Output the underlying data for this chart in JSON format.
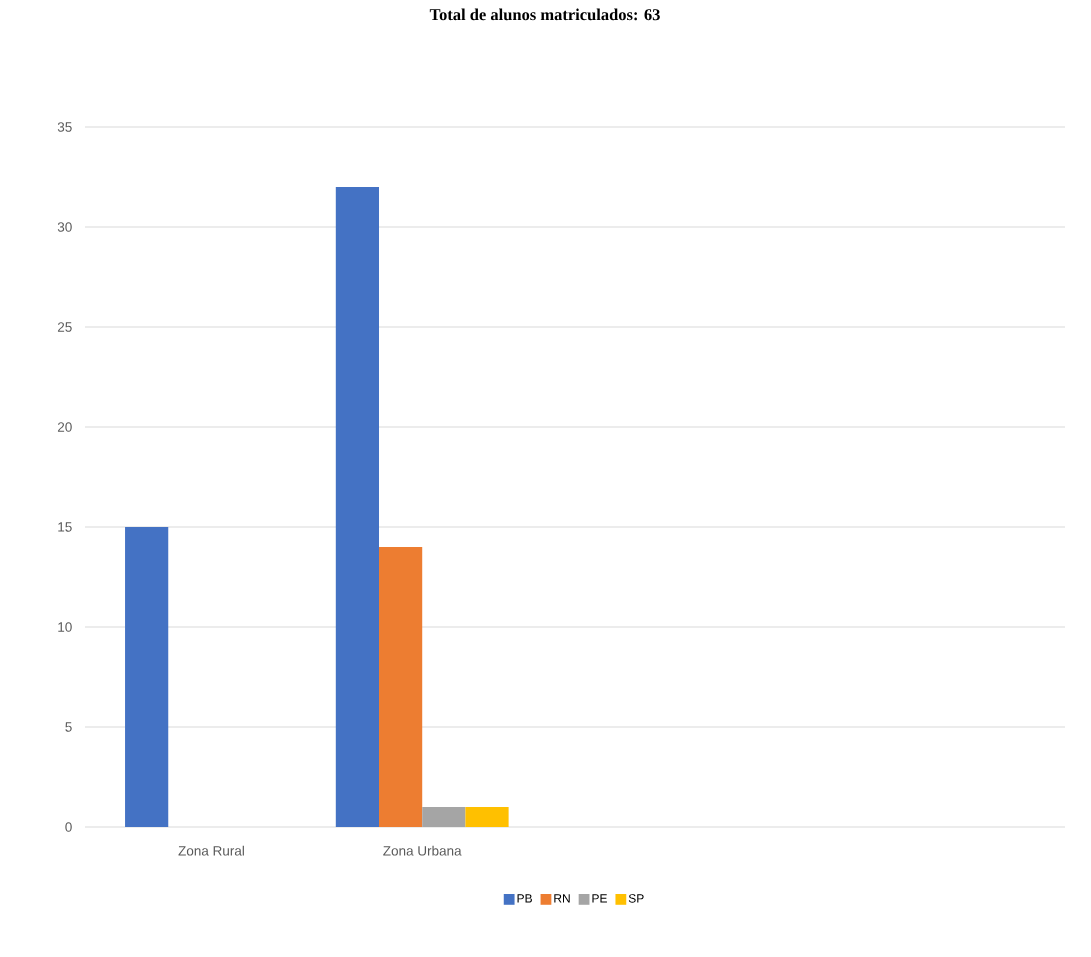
{
  "chart_data": {
    "type": "bar",
    "title": "Total de alunos matriculados: 63",
    "categories": [
      "Zona Rural",
      "Zona Urbana"
    ],
    "series": [
      {
        "name": "PB",
        "color": "#4472c4",
        "values": [
          15,
          32
        ]
      },
      {
        "name": "RN",
        "color": "#ed7d31",
        "values": [
          0,
          14
        ]
      },
      {
        "name": "PE",
        "color": "#a5a5a5",
        "values": [
          0,
          1
        ]
      },
      {
        "name": "SP",
        "color": "#ffc000",
        "values": [
          0,
          1
        ]
      }
    ],
    "ylim": [
      0,
      35
    ],
    "yticks": [
      0,
      5,
      10,
      15,
      20,
      25,
      30,
      35
    ],
    "grid": "y",
    "legend": "bottom"
  }
}
